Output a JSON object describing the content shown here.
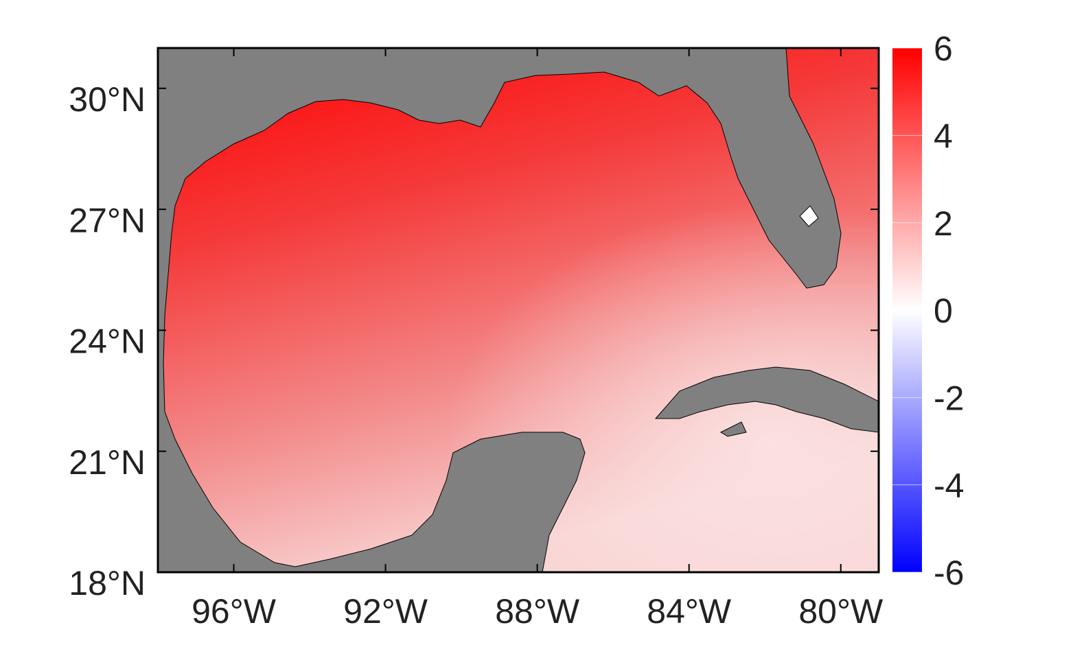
{
  "map": {
    "xlim": [
      -98,
      -79
    ],
    "ylim": [
      18,
      31
    ],
    "xticks": [
      {
        "value": -96,
        "label": "96°W"
      },
      {
        "value": -92,
        "label": "92°W"
      },
      {
        "value": -88,
        "label": "88°W"
      },
      {
        "value": -84,
        "label": "84°W"
      },
      {
        "value": -80,
        "label": "80°W"
      }
    ],
    "yticks": [
      {
        "value": 18,
        "label": "18°N"
      },
      {
        "value": 21,
        "label": "21°N"
      },
      {
        "value": 24,
        "label": "24°N"
      },
      {
        "value": 27,
        "label": "27°N"
      },
      {
        "value": 30,
        "label": "30°N"
      }
    ],
    "colorbar": {
      "lim": [
        -6,
        6
      ],
      "ticks": [
        -6,
        -4,
        -2,
        0,
        2,
        4,
        6
      ],
      "colors": [
        "#0000ff",
        "#ffffff",
        "#ff0000"
      ]
    },
    "land_color": "#808080"
  }
}
